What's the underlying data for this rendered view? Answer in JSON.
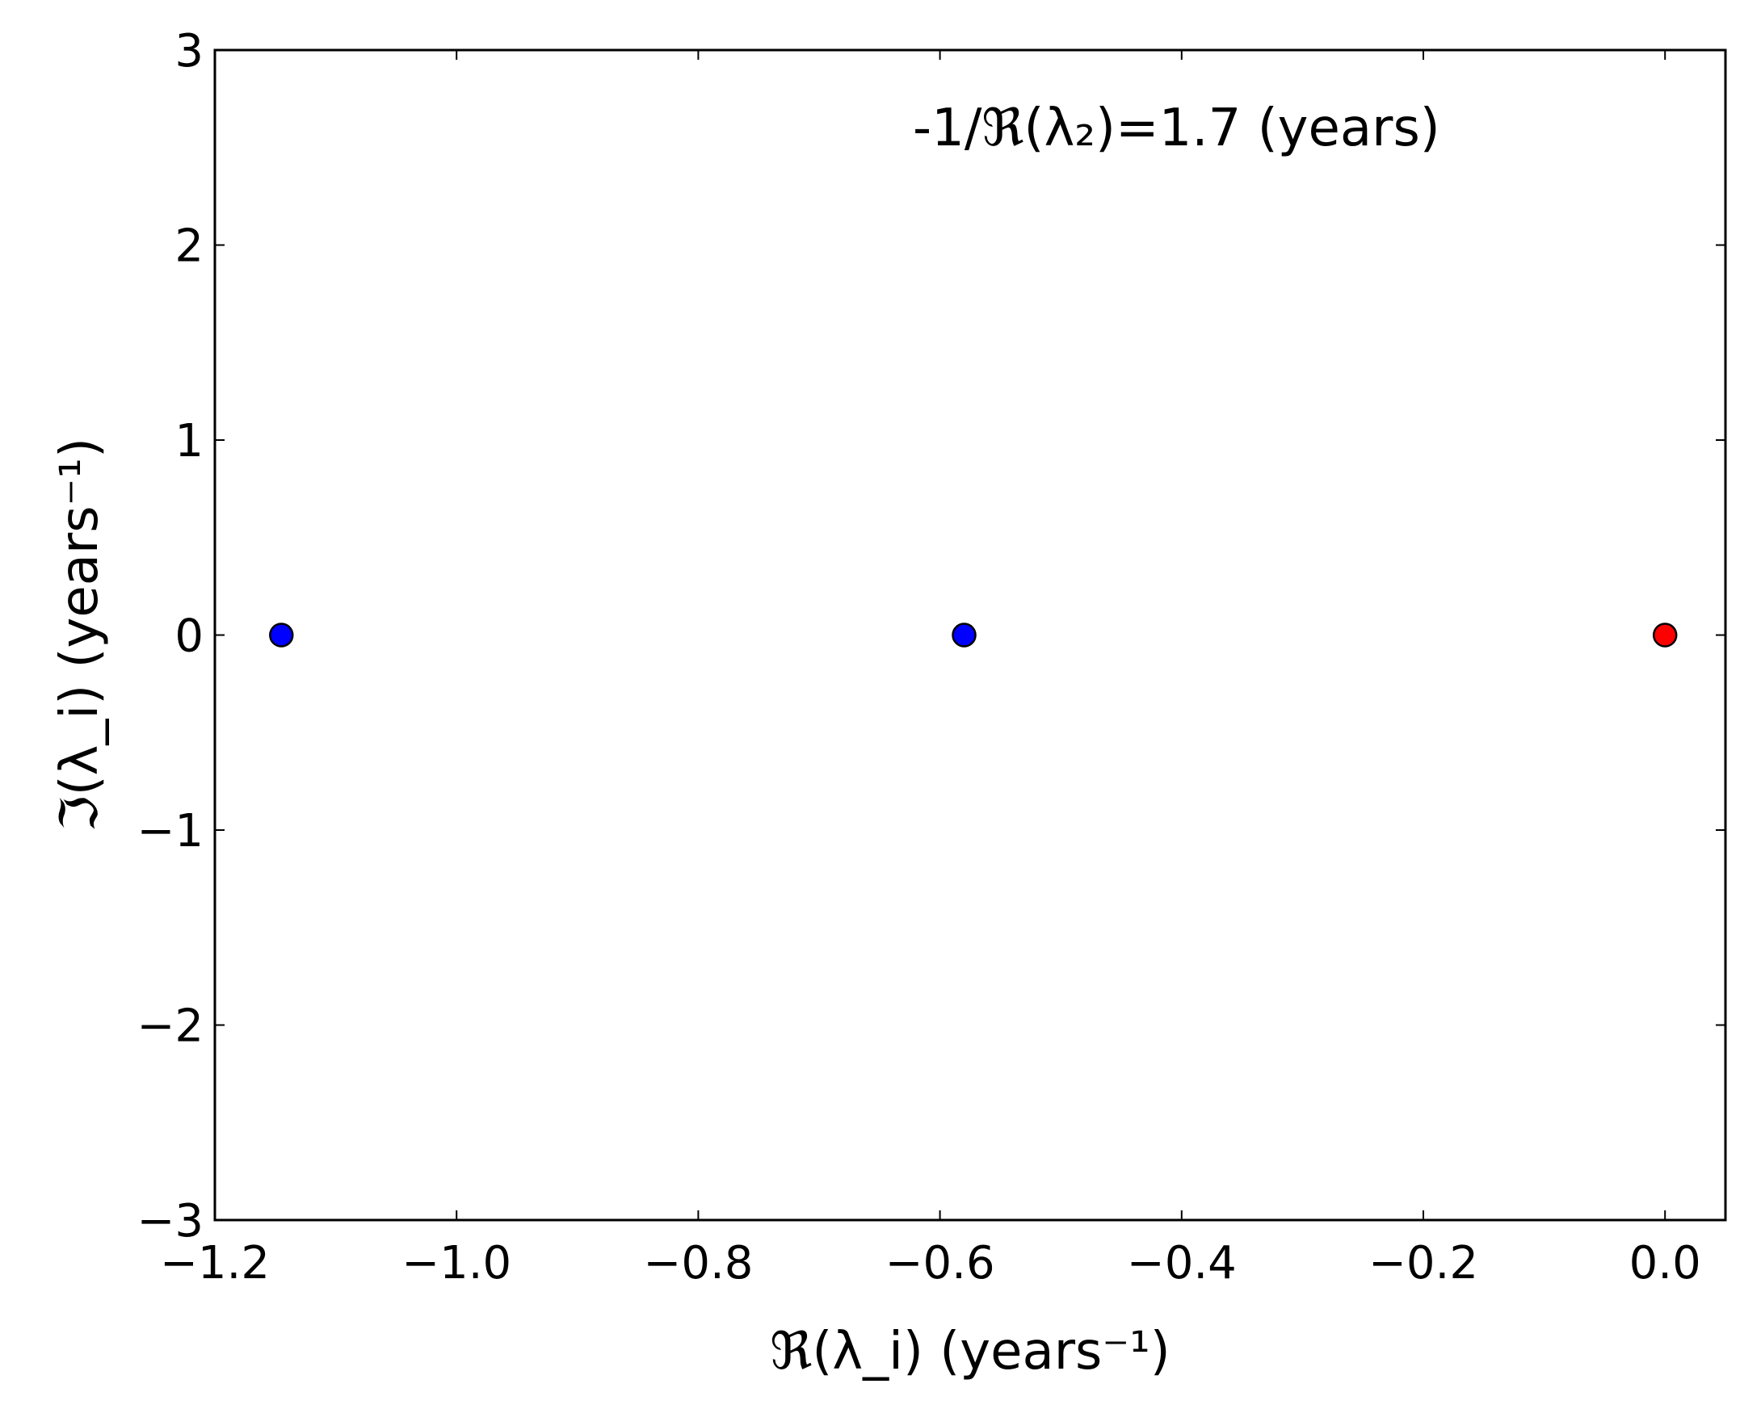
{
  "chart_data": {
    "type": "scatter",
    "xlim": [
      -1.2,
      0.05
    ],
    "ylim": [
      -3,
      3
    ],
    "grid": false,
    "x_ticks": [
      "−1.2",
      "−1.0",
      "−0.8",
      "−0.6",
      "−0.4",
      "−0.2",
      "0.0"
    ],
    "x_tick_values": [
      -1.2,
      -1.0,
      -0.8,
      -0.6,
      -0.4,
      -0.2,
      0.0
    ],
    "y_ticks": [
      "−3",
      "−2",
      "−1",
      "0",
      "1",
      "2",
      "3"
    ],
    "y_tick_values": [
      -3,
      -2,
      -1,
      0,
      1,
      2,
      3
    ],
    "xlabel": "ℜ(λ_i) (years⁻¹)",
    "ylabel": "ℑ(λ_i) (years⁻¹)",
    "annotation": "-1/ℜ(λ₂)=1.7 (years)",
    "points": [
      {
        "x": -1.145,
        "y": 0,
        "color": "#0000ff"
      },
      {
        "x": -0.58,
        "y": 0,
        "color": "#0000ff"
      },
      {
        "x": 0.0,
        "y": 0,
        "color": "#ff0000"
      }
    ]
  }
}
